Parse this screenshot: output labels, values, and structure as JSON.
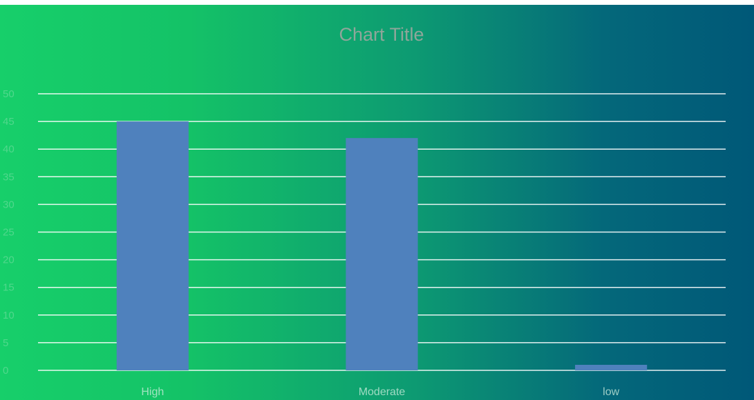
{
  "chart_data": {
    "type": "bar",
    "title": "Chart Title",
    "categories": [
      "High",
      "Moderate",
      "low"
    ],
    "values": [
      45,
      42,
      1
    ],
    "color": "#4f81bd",
    "ylim": [
      0,
      50
    ],
    "yticks": [
      0,
      5,
      10,
      15,
      20,
      25,
      30,
      35,
      40,
      45,
      50
    ],
    "grid": true
  }
}
